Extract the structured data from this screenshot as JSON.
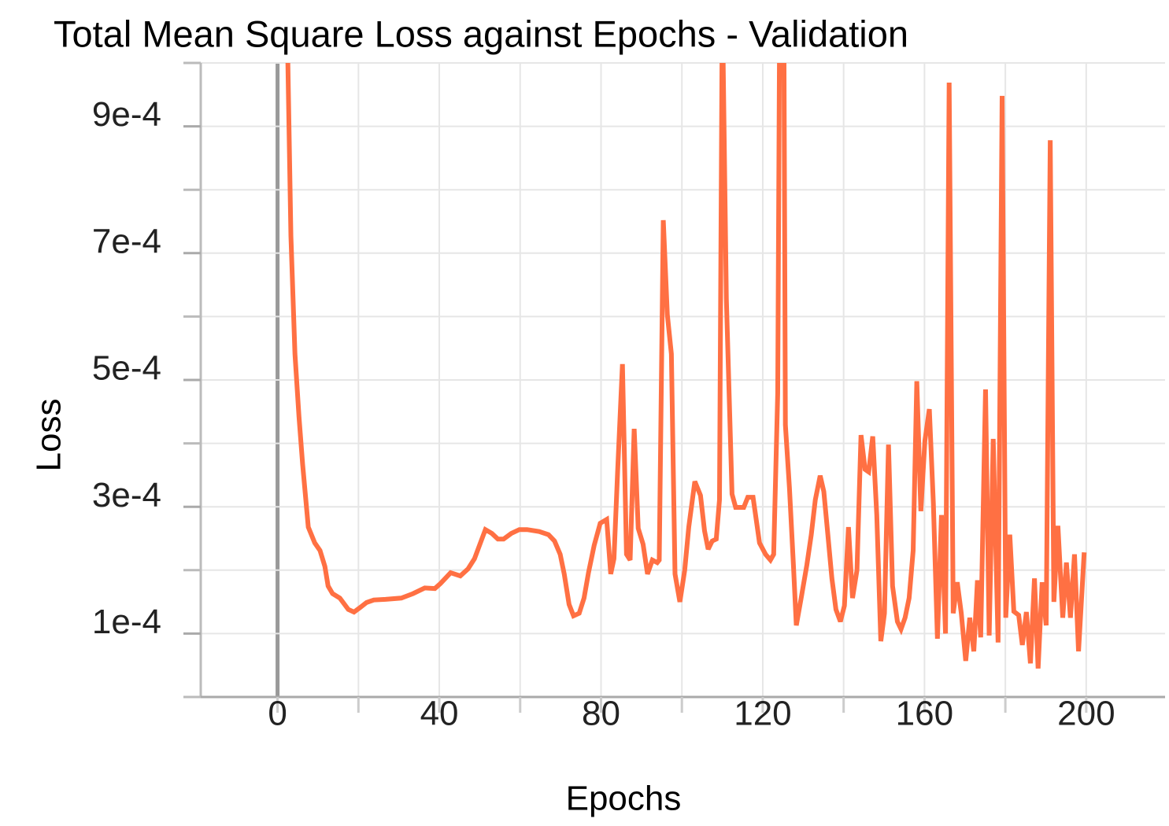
{
  "chart_data": {
    "type": "line",
    "title": "Total Mean Square Loss against Epochs - Validation",
    "x_label": "Epochs",
    "y_label": "Loss",
    "color": "#ff7043",
    "grid": true,
    "xlim": [
      -19,
      219.5
    ],
    "xticks": [
      0,
      40,
      80,
      120,
      160,
      200
    ],
    "xminorticks": [
      20,
      60,
      100,
      140,
      180
    ],
    "ylim": [
      0,
      0.001
    ],
    "yticks": [
      {
        "value": 0.0001,
        "label": "1e-4"
      },
      {
        "value": 0.0003,
        "label": "3e-4"
      },
      {
        "value": 0.0005,
        "label": "5e-4"
      },
      {
        "value": 0.0007,
        "label": "7e-4"
      },
      {
        "value": 0.0009,
        "label": "9e-4"
      }
    ],
    "yminorticks": [
      0,
      0.0002,
      0.0004,
      0.0006,
      0.0008,
      0.001
    ],
    "x": [
      2,
      3.3,
      4.3,
      5.3,
      6.2,
      7.6,
      9.2,
      10.5,
      11.7,
      12.5,
      13.6,
      15.4,
      17.5,
      18.9,
      20.4,
      22,
      23.8,
      26.7,
      30.6,
      33.5,
      36.4,
      38.9,
      40.3,
      42.8,
      45.2,
      47.1,
      48.7,
      51.4,
      53,
      54.5,
      55.9,
      57.8,
      59.8,
      61.7,
      64.7,
      67,
      68.5,
      69.9,
      70.9,
      72.1,
      73.2,
      74.6,
      75.8,
      76.9,
      78.3,
      79.8,
      81.4,
      82.4,
      83.2,
      84.1,
      85.3,
      86.3,
      87.2,
      88.2,
      89.2,
      90.4,
      91.5,
      92.7,
      93.9,
      94.4,
      95.4,
      96.4,
      97.4,
      98.3,
      99.5,
      100.7,
      101.7,
      103.2,
      104.6,
      105.6,
      106.5,
      107.5,
      108.5,
      109.3,
      110,
      111,
      112.4,
      113.3,
      115.3,
      116.3,
      117.6,
      119.2,
      120.7,
      121.9,
      122.7,
      123.7,
      124.2,
      125.2,
      125.6,
      126.6,
      127.6,
      128.3,
      129.5,
      130.9,
      132,
      133,
      134.2,
      135.1,
      136.1,
      137.1,
      138.1,
      139.2,
      140.2,
      141.2,
      142.2,
      143.3,
      144.3,
      145.3,
      146.2,
      147.2,
      148.2,
      149.2,
      150.1,
      151.1,
      152.1,
      153.3,
      154.2,
      155.2,
      156.2,
      157.2,
      158.1,
      159.1,
      160.1,
      161.2,
      162.2,
      163.2,
      164.2,
      165.2,
      166.1,
      167.1,
      168.1,
      169.1,
      170.2,
      171.2,
      172.2,
      173.1,
      173.9,
      175.1,
      176,
      177,
      178.2,
      179.2,
      180.1,
      181.1,
      182.1,
      183.3,
      184.2,
      185.2,
      186.2,
      187.2,
      188.1,
      189.1,
      190.1,
      191.1,
      192,
      193,
      194.2,
      195.1,
      196.1,
      197.1,
      198.1,
      199.5
    ],
    "values": [
      0.0012,
      0.000727,
      0.000541,
      0.000442,
      0.000367,
      0.000268,
      0.000243,
      0.000231,
      0.000206,
      0.000175,
      0.000163,
      0.000156,
      0.000138,
      0.000134,
      0.000141,
      0.000149,
      0.000153,
      0.000154,
      0.000156,
      0.000163,
      0.000172,
      0.000171,
      0.000179,
      0.000196,
      0.000191,
      0.000202,
      0.000218,
      0.000264,
      0.000258,
      0.000249,
      0.000249,
      0.000258,
      0.000264,
      0.000264,
      0.000261,
      0.000256,
      0.000246,
      0.000225,
      0.000194,
      0.000146,
      0.000128,
      0.000132,
      0.000156,
      0.000196,
      0.000239,
      0.000274,
      0.00028,
      0.000194,
      0.000218,
      0.000355,
      0.000525,
      0.000225,
      0.000216,
      0.000423,
      0.000266,
      0.000241,
      0.000194,
      0.000216,
      0.000212,
      0.000216,
      0.000752,
      0.000603,
      0.000541,
      0.000194,
      0.00015,
      0.0002,
      0.000268,
      0.00034,
      0.000318,
      0.000262,
      0.000233,
      0.000246,
      0.000249,
      0.000311,
      0.0011,
      0.000628,
      0.00032,
      0.000299,
      0.000299,
      0.000315,
      0.000315,
      0.000243,
      0.000225,
      0.000216,
      0.000225,
      0.000479,
      0.0011,
      0.0011,
      0.000429,
      0.00033,
      0.000206,
      0.000113,
      0.000156,
      0.000208,
      0.000256,
      0.000311,
      0.000349,
      0.000324,
      0.000256,
      0.000187,
      0.000138,
      0.000119,
      0.000144,
      0.000268,
      0.000156,
      0.0002,
      0.000413,
      0.000359,
      0.000355,
      0.000411,
      0.000287,
      8.8e-05,
      0.000132,
      0.000398,
      0.000175,
      0.000119,
      0.000107,
      0.000125,
      0.000156,
      0.000231,
      0.000498,
      0.000293,
      0.000404,
      0.000454,
      0.000305,
      9.2e-05,
      0.000287,
      0.0001,
      0.000969,
      0.000132,
      0.000181,
      0.000132,
      5.7e-05,
      0.000125,
      7.2e-05,
      0.000184,
      9.4e-05,
      0.000485,
      9.7e-05,
      0.000407,
      8.6e-05,
      0.000948,
      0.000125,
      0.000256,
      0.000135,
      0.000129,
      8.2e-05,
      0.000134,
      5.3e-05,
      0.000187,
      4.5e-05,
      0.000181,
      0.000113,
      0.000878,
      0.00015,
      0.00027,
      0.000125,
      0.000212,
      0.000125,
      0.000225,
      7.2e-05,
      0.000228
    ]
  }
}
